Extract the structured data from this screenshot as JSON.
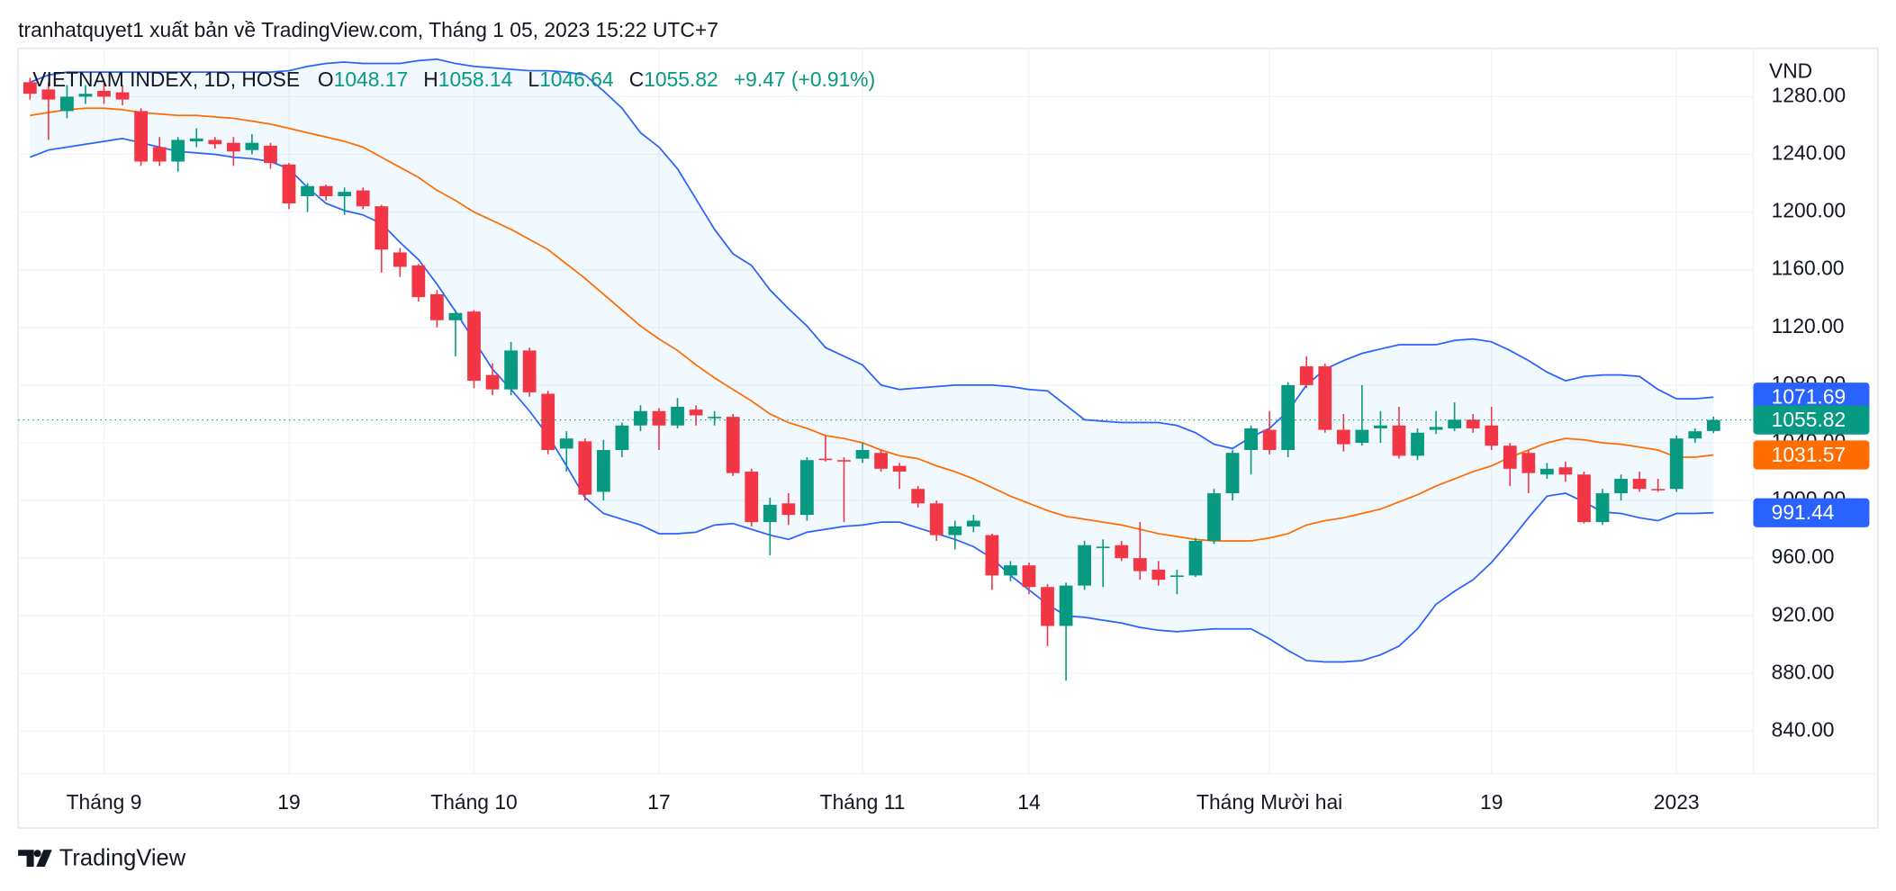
{
  "header": {
    "attribution": "tranhatquyet1 xuất bản về TradingView.com, Tháng 1 05, 2023 15:22 UTC+7"
  },
  "footer": {
    "brand": "TradingView"
  },
  "chart_data": {
    "type": "candlestick",
    "title": "VIETNAM INDEX, 1D, HOSE",
    "y_unit": "VND",
    "ohlc_labels": {
      "open": "O",
      "high": "H",
      "low": "L",
      "close": "C"
    },
    "change_label": "+9.47 (+0.91%)",
    "up_color": "#089981",
    "down_color": "#f23645",
    "last_price_line": true,
    "grid": true,
    "categories": [
      null,
      null,
      null,
      null,
      "Tháng 9",
      null,
      null,
      null,
      null,
      null,
      null,
      null,
      null,
      null,
      "19",
      null,
      null,
      null,
      null,
      null,
      null,
      null,
      null,
      null,
      "Tháng 10",
      null,
      null,
      null,
      null,
      null,
      null,
      null,
      null,
      null,
      "17",
      null,
      null,
      null,
      null,
      null,
      null,
      null,
      null,
      null,
      null,
      "Tháng 11",
      null,
      null,
      null,
      null,
      null,
      null,
      null,
      null,
      "14",
      null,
      null,
      null,
      null,
      null,
      null,
      null,
      null,
      null,
      null,
      null,
      null,
      "Tháng Mười hai",
      null,
      null,
      null,
      null,
      null,
      null,
      null,
      null,
      null,
      null,
      null,
      "19",
      null,
      null,
      null,
      null,
      null,
      null,
      null,
      null,
      null,
      "2023",
      null,
      null
    ],
    "open": [
      1290,
      1285,
      1270,
      1280,
      1284,
      1283,
      1270,
      1245,
      1235,
      1249,
      1250,
      1248,
      1243,
      1246,
      1233,
      1211,
      1218,
      1211,
      1215,
      1204,
      1172,
      1163,
      1143,
      1125,
      1131,
      1087,
      1077,
      1104,
      1074,
      1036,
      1041,
      1006,
      1035,
      1052,
      1062,
      1052,
      1063,
      1057,
      1058,
      1020,
      985,
      998,
      990,
      1029,
      1028,
      1029,
      1033,
      1024,
      1008,
      998,
      976,
      982,
      976,
      948,
      955,
      940,
      913,
      941,
      967,
      969,
      960,
      952,
      947,
      948,
      972,
      1005,
      1035,
      1049,
      1035,
      1093,
      1093,
      1049,
      1040,
      1050,
      1052,
      1031,
      1049,
      1050,
      1056,
      1052,
      1038,
      1033,
      1018,
      1023,
      1018,
      985,
      1005,
      1015,
      1008,
      1008,
      1043,
      1048.17
    ],
    "high": [
      1293,
      1290,
      1288,
      1288,
      1290,
      1288,
      1272,
      1252,
      1252,
      1258,
      1252,
      1252,
      1254,
      1248,
      1234,
      1220,
      1219,
      1217,
      1217,
      1205,
      1175,
      1164,
      1146,
      1132,
      1132,
      1095,
      1110,
      1106,
      1076,
      1048,
      1043,
      1042,
      1054,
      1066,
      1064,
      1071,
      1066,
      1062,
      1060,
      1022,
      1002,
      1005,
      1030,
      1045,
      1030,
      1040,
      1035,
      1026,
      1010,
      1000,
      986,
      990,
      977,
      958,
      957,
      942,
      943,
      972,
      973,
      972,
      985,
      958,
      952,
      974,
      1008,
      1035,
      1052,
      1062,
      1082,
      1100,
      1095,
      1060,
      1080,
      1062,
      1065,
      1050,
      1062,
      1068,
      1060,
      1065,
      1040,
      1035,
      1026,
      1027,
      1020,
      1008,
      1018,
      1020,
      1015,
      1045,
      1050,
      1058.14
    ],
    "low": [
      1278,
      1250,
      1265,
      1275,
      1275,
      1274,
      1232,
      1232,
      1228,
      1245,
      1244,
      1232,
      1240,
      1230,
      1202,
      1200,
      1208,
      1198,
      1202,
      1158,
      1155,
      1138,
      1120,
      1100,
      1078,
      1073,
      1073,
      1072,
      1032,
      1020,
      1000,
      1000,
      1030,
      1048,
      1035,
      1050,
      1052,
      1052,
      1017,
      982,
      962,
      983,
      986,
      1027,
      985,
      1026,
      1020,
      1008,
      995,
      972,
      966,
      978,
      938,
      944,
      935,
      899,
      875,
      938,
      940,
      958,
      945,
      941,
      935,
      947,
      970,
      1000,
      1018,
      1032,
      1030,
      1078,
      1047,
      1034,
      1038,
      1040,
      1029,
      1028,
      1046,
      1048,
      1047,
      1035,
      1010,
      1005,
      1015,
      1013,
      984,
      983,
      1000,
      1006,
      1006,
      1006,
      1040,
      1046.64
    ],
    "close": [
      1282,
      1278,
      1280,
      1282,
      1280,
      1278,
      1235,
      1235,
      1250,
      1251,
      1247,
      1242,
      1248,
      1234,
      1206,
      1218,
      1211,
      1214,
      1204,
      1174,
      1162,
      1141,
      1125,
      1130,
      1083,
      1077,
      1104,
      1075,
      1035,
      1043,
      1004,
      1035,
      1052,
      1062,
      1052,
      1065,
      1059,
      1058,
      1019,
      985,
      997,
      990,
      1028,
      1028,
      1027,
      1035,
      1022,
      1020,
      998,
      976,
      982,
      986,
      948,
      955,
      940,
      913,
      941,
      969,
      968,
      960,
      951,
      945,
      948,
      972,
      1005,
      1033,
      1050,
      1035,
      1080,
      1080,
      1049,
      1039,
      1049,
      1052,
      1031,
      1047,
      1051,
      1056,
      1050,
      1038,
      1022,
      1019,
      1022,
      1018,
      985,
      1005,
      1015,
      1008,
      1007,
      1043,
      1048,
      1055.82
    ],
    "upper_band": {
      "color": "#2962ff",
      "values": [
        1290,
        1295,
        1297,
        1297,
        1297,
        1297,
        1297,
        1297,
        1297,
        1297,
        1297,
        1297,
        1297,
        1297,
        1298,
        1301,
        1303,
        1304,
        1303,
        1303,
        1303,
        1305,
        1306,
        1303,
        1301,
        1300,
        1299,
        1298,
        1298,
        1297,
        1295,
        1284,
        1272,
        1255,
        1245,
        1230,
        1209,
        1188,
        1171,
        1163,
        1146,
        1133,
        1121,
        1106,
        1100,
        1094,
        1080,
        1077,
        1078,
        1079,
        1080,
        1080,
        1080,
        1079,
        1077,
        1076,
        1066,
        1056,
        1055,
        1054,
        1054,
        1054,
        1052,
        1047,
        1039,
        1036,
        1044,
        1050,
        1062,
        1080,
        1091,
        1097,
        1102,
        1105,
        1108,
        1108,
        1108,
        1111,
        1112,
        1110,
        1104,
        1097,
        1089,
        1083,
        1086,
        1087,
        1087,
        1086,
        1077,
        1070.5,
        1070.5,
        1071.69
      ]
    },
    "basis": {
      "color": "#ff6d00",
      "values": [
        1267,
        1269,
        1271,
        1272,
        1272,
        1271,
        1269,
        1268,
        1267,
        1267,
        1266,
        1265,
        1263,
        1261,
        1258,
        1255,
        1252,
        1249,
        1245,
        1238,
        1231,
        1224,
        1215,
        1208,
        1200,
        1194,
        1188,
        1181,
        1174,
        1164,
        1154,
        1143,
        1132,
        1121,
        1112,
        1104,
        1094,
        1085,
        1077,
        1069,
        1060,
        1054,
        1050,
        1045,
        1043,
        1040,
        1035,
        1031,
        1029,
        1024,
        1020,
        1015,
        1009,
        1003,
        998,
        993,
        989,
        987,
        985,
        983,
        980,
        977,
        975,
        973,
        972,
        972,
        972,
        974,
        977,
        983,
        986,
        988,
        991,
        994,
        999,
        1004,
        1010,
        1015,
        1020,
        1024,
        1030,
        1035,
        1040,
        1043,
        1042,
        1040,
        1039,
        1037,
        1035,
        1030,
        1030,
        1031.57
      ]
    },
    "lower_band": {
      "color": "#2962ff",
      "values": [
        1238,
        1243,
        1245,
        1247,
        1249,
        1251,
        1248,
        1245,
        1242,
        1241,
        1240,
        1238,
        1237,
        1235,
        1230,
        1217,
        1206,
        1201,
        1198,
        1192,
        1179,
        1167,
        1150,
        1131,
        1111,
        1091,
        1077,
        1062,
        1045,
        1024,
        1002,
        991,
        987,
        983,
        977,
        977,
        978,
        983,
        984,
        980,
        976,
        973,
        978,
        980,
        982,
        983,
        985,
        985,
        981,
        977,
        973,
        968,
        960,
        948,
        938,
        928,
        920,
        919,
        917,
        915,
        912,
        910,
        909,
        910,
        911,
        911,
        911,
        904,
        896,
        889,
        888,
        888,
        889,
        893,
        899,
        911,
        928,
        937,
        945,
        957,
        972,
        988,
        1003,
        1005,
        999,
        992,
        991,
        988,
        986,
        991,
        991,
        991.44
      ]
    },
    "band_fill": "rgba(33,150,243,0.06)",
    "ylim": [
      810.6,
      1313.5
    ],
    "yticks": [
      {
        "value": 840,
        "label": "840.00"
      },
      {
        "value": 880,
        "label": "880.00"
      },
      {
        "value": 920,
        "label": "920.00"
      },
      {
        "value": 960,
        "label": "960.00"
      },
      {
        "value": 1000,
        "label": "1000.00"
      },
      {
        "value": 1040,
        "label": "1040.00"
      },
      {
        "value": 1080,
        "label": "1080.00"
      },
      {
        "value": 1120,
        "label": "1120.00"
      },
      {
        "value": 1160,
        "label": "1160.00"
      },
      {
        "value": 1200,
        "label": "1200.00"
      },
      {
        "value": 1240,
        "label": "1240.00"
      },
      {
        "value": 1280,
        "label": "1280.00"
      }
    ]
  }
}
